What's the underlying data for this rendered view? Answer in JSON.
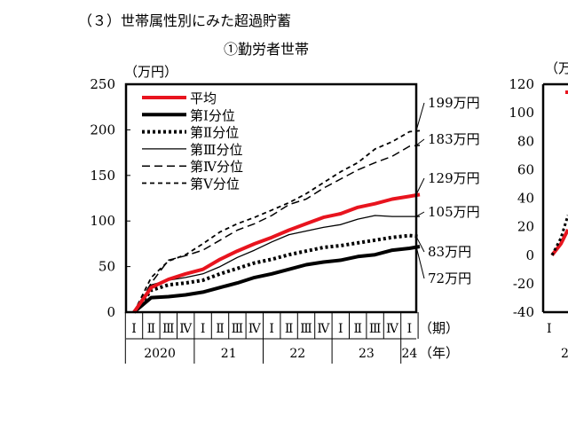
{
  "page": {
    "heading": "（３）世帯属性別にみた超過貯蓄",
    "subtitle": "①勤労者世帯"
  },
  "chart_data": {
    "type": "line",
    "title": "①勤労者世帯",
    "unit_label": "（万円）",
    "ylim": [
      0,
      250
    ],
    "yticks": [
      0,
      50,
      100,
      150,
      200,
      250
    ],
    "x_quarters": [
      "Ⅰ",
      "Ⅱ",
      "Ⅲ",
      "Ⅳ",
      "Ⅰ",
      "Ⅱ",
      "Ⅲ",
      "Ⅳ",
      "Ⅰ",
      "Ⅱ",
      "Ⅲ",
      "Ⅳ",
      "Ⅰ",
      "Ⅱ",
      "Ⅲ",
      "Ⅳ",
      "Ⅰ"
    ],
    "x_years": [
      "2020",
      "21",
      "22",
      "23",
      "24"
    ],
    "x_suffix_quarter": "（期）",
    "x_suffix_year": "（年）",
    "x_points": [
      0,
      1,
      2,
      3,
      4,
      5,
      6,
      7,
      8,
      9,
      10,
      11,
      12,
      13,
      14,
      15,
      16,
      16.6
    ],
    "series": [
      {
        "name": "平均",
        "color": "#e8141e",
        "style": "thick",
        "values": [
          0,
          27,
          36,
          42,
          47,
          58,
          67,
          75,
          82,
          90,
          97,
          104,
          108,
          115,
          119,
          124,
          127,
          129
        ],
        "end_label": "129万円"
      },
      {
        "name": "第Ⅰ分位",
        "color": "#000000",
        "style": "thick-solid",
        "values": [
          0,
          16,
          17,
          19,
          22,
          27,
          32,
          38,
          42,
          47,
          52,
          55,
          57,
          61,
          63,
          68,
          70,
          72
        ],
        "end_label": "72万円"
      },
      {
        "name": "第Ⅱ分位",
        "color": "#000000",
        "style": "dotted",
        "values": [
          0,
          24,
          30,
          32,
          35,
          42,
          48,
          54,
          58,
          63,
          67,
          71,
          73,
          76,
          79,
          82,
          84,
          83
        ],
        "end_label": "83万円"
      },
      {
        "name": "第Ⅲ分位",
        "color": "#000000",
        "style": "thin-solid",
        "values": [
          0,
          30,
          35,
          38,
          42,
          50,
          60,
          68,
          77,
          85,
          89,
          93,
          96,
          102,
          106,
          105,
          105,
          105
        ],
        "end_label": "105万円"
      },
      {
        "name": "第Ⅳ分位",
        "color": "#000000",
        "style": "dashed",
        "values": [
          0,
          32,
          57,
          62,
          68,
          79,
          90,
          97,
          106,
          118,
          124,
          136,
          146,
          156,
          164,
          171,
          182,
          183
        ],
        "end_label": "183万円"
      },
      {
        "name": "第Ⅴ分位",
        "color": "#000000",
        "style": "short-dashed",
        "values": [
          0,
          38,
          56,
          63,
          75,
          88,
          97,
          104,
          112,
          120,
          130,
          142,
          154,
          164,
          179,
          187,
          198,
          199
        ],
        "end_label": "199万円"
      }
    ]
  },
  "partial_chart": {
    "unit_label": "（万",
    "ylim": [
      -40,
      120
    ],
    "yticks": [
      120,
      100,
      80,
      60,
      40,
      20,
      0,
      -20,
      -40
    ],
    "x_first_quarter": "Ⅰ",
    "x_first_year": "2"
  }
}
